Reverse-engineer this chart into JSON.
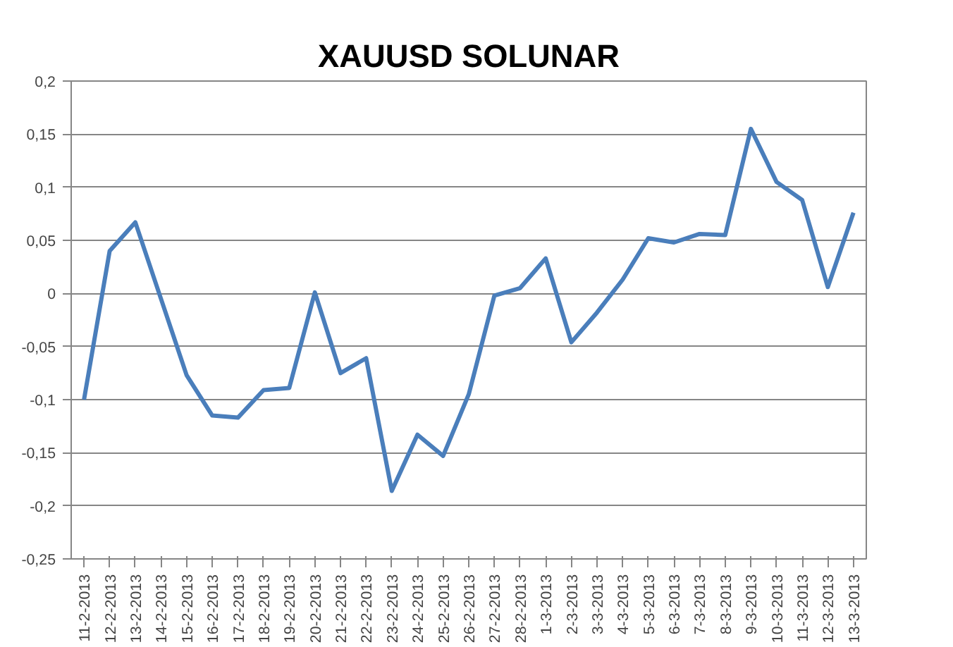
{
  "chart_data": {
    "type": "line",
    "title": "XAUUSD SOLUNAR",
    "categories": [
      "11-2-2013",
      "12-2-2013",
      "13-2-2013",
      "14-2-2013",
      "15-2-2013",
      "16-2-2013",
      "17-2-2013",
      "18-2-2013",
      "19-2-2013",
      "20-2-2013",
      "21-2-2013",
      "22-2-2013",
      "23-2-2013",
      "24-2-2013",
      "25-2-2013",
      "26-2-2013",
      "27-2-2013",
      "28-2-2013",
      "1-3-2013",
      "2-3-2013",
      "3-3-2013",
      "4-3-2013",
      "5-3-2013",
      "6-3-2013",
      "7-3-2013",
      "8-3-2013",
      "9-3-2013",
      "10-3-2013",
      "11-3-2013",
      "12-3-2013",
      "13-3-2013"
    ],
    "series": [
      {
        "color": "#4a7ebb",
        "values": [
          -0.1,
          0.04,
          0.067,
          -0.005,
          -0.077,
          -0.115,
          -0.117,
          -0.091,
          -0.089,
          0.001,
          -0.075,
          -0.061,
          -0.186,
          -0.133,
          -0.153,
          -0.095,
          -0.002,
          0.005,
          0.033,
          -0.046,
          -0.018,
          0.013,
          0.052,
          0.048,
          0.056,
          0.055,
          0.155,
          0.105,
          0.088,
          0.006,
          0.076
        ]
      }
    ],
    "ylim": [
      -0.25,
      0.2
    ],
    "yticks": [
      {
        "value": -0.25,
        "label": "-0,25"
      },
      {
        "value": -0.2,
        "label": "-0,2"
      },
      {
        "value": -0.15,
        "label": "-0,15"
      },
      {
        "value": -0.1,
        "label": "-0,1"
      },
      {
        "value": -0.05,
        "label": "-0,05"
      },
      {
        "value": 0,
        "label": "0"
      },
      {
        "value": 0.05,
        "label": "0,05"
      },
      {
        "value": 0.1,
        "label": "0,1"
      },
      {
        "value": 0.15,
        "label": "0,15"
      },
      {
        "value": 0.2,
        "label": "0,2"
      }
    ],
    "grid": "y",
    "marker": "none",
    "line_style": "solid"
  }
}
